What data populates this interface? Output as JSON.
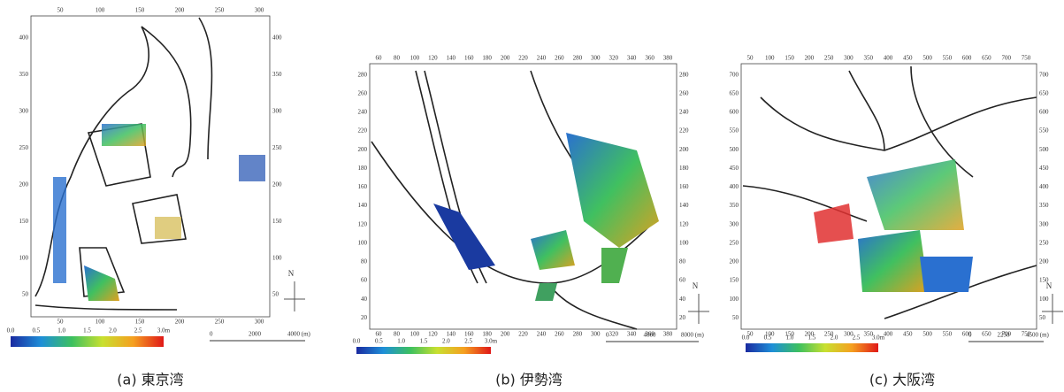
{
  "panels": [
    {
      "caption": "(a) 東京湾",
      "top_ticks": [
        "50",
        "100",
        "150",
        "200",
        "250",
        "300"
      ],
      "bottom_ticks": [
        "50",
        "100",
        "150",
        "200",
        "250",
        "300"
      ],
      "left_ticks": [
        "400",
        "350",
        "300",
        "250",
        "200",
        "150",
        "100",
        "50"
      ],
      "right_ticks": [
        "400",
        "350",
        "300",
        "250",
        "200",
        "150",
        "100",
        "50"
      ],
      "colorbar_labels": [
        "0.0",
        "0.5",
        "1.0",
        "1.5",
        "2.0",
        "2.5",
        "3.0m"
      ],
      "scale_labels": [
        "0",
        "2000",
        "4000 (m)"
      ],
      "north": "N"
    },
    {
      "caption": "(b) 伊勢湾",
      "top_ticks": [
        "60",
        "80",
        "100",
        "120",
        "140",
        "160",
        "180",
        "200",
        "220",
        "240",
        "260",
        "280",
        "300",
        "320",
        "340",
        "360",
        "380"
      ],
      "bottom_ticks": [
        "60",
        "80",
        "100",
        "120",
        "140",
        "160",
        "180",
        "200",
        "220",
        "240",
        "260",
        "280",
        "300",
        "320",
        "340",
        "360",
        "380"
      ],
      "left_ticks": [
        "280",
        "260",
        "240",
        "220",
        "200",
        "180",
        "160",
        "140",
        "120",
        "100",
        "80",
        "60",
        "40",
        "20"
      ],
      "right_ticks": [
        "280",
        "260",
        "240",
        "220",
        "200",
        "180",
        "160",
        "140",
        "120",
        "100",
        "80",
        "60",
        "40",
        "20"
      ],
      "colorbar_labels": [
        "0.0",
        "0.5",
        "1.0",
        "1.5",
        "2.0",
        "2.5",
        "3.0m"
      ],
      "scale_labels": [
        "0",
        "4000",
        "8000 (m)"
      ],
      "north": "N"
    },
    {
      "caption": "(c) 大阪湾",
      "top_ticks": [
        "50",
        "100",
        "150",
        "200",
        "250",
        "300",
        "350",
        "400",
        "450",
        "500",
        "550",
        "600",
        "650",
        "700",
        "750"
      ],
      "bottom_ticks": [
        "50",
        "100",
        "150",
        "200",
        "250",
        "300",
        "350",
        "400",
        "450",
        "500",
        "550",
        "600",
        "650",
        "700",
        "750"
      ],
      "left_ticks": [
        "700",
        "650",
        "600",
        "550",
        "500",
        "450",
        "400",
        "350",
        "300",
        "250",
        "200",
        "150",
        "100",
        "50"
      ],
      "right_ticks": [
        "700",
        "650",
        "600",
        "550",
        "500",
        "450",
        "400",
        "350",
        "300",
        "250",
        "200",
        "150",
        "100",
        "50"
      ],
      "colorbar_labels": [
        "0.0",
        "0.5",
        "1.0",
        "1.5",
        "2.0",
        "2.5",
        "3.0m"
      ],
      "scale_labels": [
        "0",
        "2250",
        "4500 (m)"
      ],
      "north": "N"
    }
  ]
}
